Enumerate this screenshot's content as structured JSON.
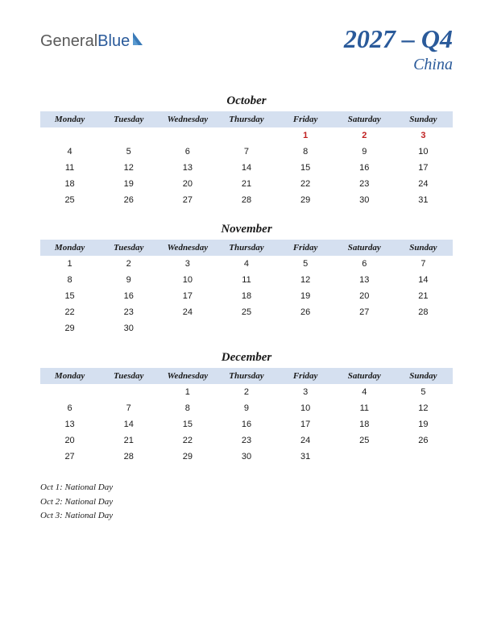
{
  "logo": {
    "part1": "General",
    "part2": "Blue"
  },
  "title": {
    "year_quarter": "2027 – Q4",
    "country": "China"
  },
  "day_headers": [
    "Monday",
    "Tuesday",
    "Wednesday",
    "Thursday",
    "Friday",
    "Saturday",
    "Sunday"
  ],
  "colors": {
    "header_bg": "#d5e0f0",
    "accent": "#2a5a9a",
    "holiday": "#c02020",
    "text": "#1a1a1a",
    "logo_gray": "#5a5a5a"
  },
  "months": [
    {
      "name": "October",
      "weeks": [
        [
          {
            "d": ""
          },
          {
            "d": ""
          },
          {
            "d": ""
          },
          {
            "d": ""
          },
          {
            "d": "1",
            "h": true
          },
          {
            "d": "2",
            "h": true
          },
          {
            "d": "3",
            "h": true
          }
        ],
        [
          {
            "d": "4"
          },
          {
            "d": "5"
          },
          {
            "d": "6"
          },
          {
            "d": "7"
          },
          {
            "d": "8"
          },
          {
            "d": "9"
          },
          {
            "d": "10"
          }
        ],
        [
          {
            "d": "11"
          },
          {
            "d": "12"
          },
          {
            "d": "13"
          },
          {
            "d": "14"
          },
          {
            "d": "15"
          },
          {
            "d": "16"
          },
          {
            "d": "17"
          }
        ],
        [
          {
            "d": "18"
          },
          {
            "d": "19"
          },
          {
            "d": "20"
          },
          {
            "d": "21"
          },
          {
            "d": "22"
          },
          {
            "d": "23"
          },
          {
            "d": "24"
          }
        ],
        [
          {
            "d": "25"
          },
          {
            "d": "26"
          },
          {
            "d": "27"
          },
          {
            "d": "28"
          },
          {
            "d": "29"
          },
          {
            "d": "30"
          },
          {
            "d": "31"
          }
        ]
      ]
    },
    {
      "name": "November",
      "weeks": [
        [
          {
            "d": "1"
          },
          {
            "d": "2"
          },
          {
            "d": "3"
          },
          {
            "d": "4"
          },
          {
            "d": "5"
          },
          {
            "d": "6"
          },
          {
            "d": "7"
          }
        ],
        [
          {
            "d": "8"
          },
          {
            "d": "9"
          },
          {
            "d": "10"
          },
          {
            "d": "11"
          },
          {
            "d": "12"
          },
          {
            "d": "13"
          },
          {
            "d": "14"
          }
        ],
        [
          {
            "d": "15"
          },
          {
            "d": "16"
          },
          {
            "d": "17"
          },
          {
            "d": "18"
          },
          {
            "d": "19"
          },
          {
            "d": "20"
          },
          {
            "d": "21"
          }
        ],
        [
          {
            "d": "22"
          },
          {
            "d": "23"
          },
          {
            "d": "24"
          },
          {
            "d": "25"
          },
          {
            "d": "26"
          },
          {
            "d": "27"
          },
          {
            "d": "28"
          }
        ],
        [
          {
            "d": "29"
          },
          {
            "d": "30"
          },
          {
            "d": ""
          },
          {
            "d": ""
          },
          {
            "d": ""
          },
          {
            "d": ""
          },
          {
            "d": ""
          }
        ]
      ]
    },
    {
      "name": "December",
      "weeks": [
        [
          {
            "d": ""
          },
          {
            "d": ""
          },
          {
            "d": "1"
          },
          {
            "d": "2"
          },
          {
            "d": "3"
          },
          {
            "d": "4"
          },
          {
            "d": "5"
          }
        ],
        [
          {
            "d": "6"
          },
          {
            "d": "7"
          },
          {
            "d": "8"
          },
          {
            "d": "9"
          },
          {
            "d": "10"
          },
          {
            "d": "11"
          },
          {
            "d": "12"
          }
        ],
        [
          {
            "d": "13"
          },
          {
            "d": "14"
          },
          {
            "d": "15"
          },
          {
            "d": "16"
          },
          {
            "d": "17"
          },
          {
            "d": "18"
          },
          {
            "d": "19"
          }
        ],
        [
          {
            "d": "20"
          },
          {
            "d": "21"
          },
          {
            "d": "22"
          },
          {
            "d": "23"
          },
          {
            "d": "24"
          },
          {
            "d": "25"
          },
          {
            "d": "26"
          }
        ],
        [
          {
            "d": "27"
          },
          {
            "d": "28"
          },
          {
            "d": "29"
          },
          {
            "d": "30"
          },
          {
            "d": "31"
          },
          {
            "d": ""
          },
          {
            "d": ""
          }
        ]
      ]
    }
  ],
  "holidays": [
    "Oct 1: National Day",
    "Oct 2: National Day",
    "Oct 3: National Day"
  ]
}
